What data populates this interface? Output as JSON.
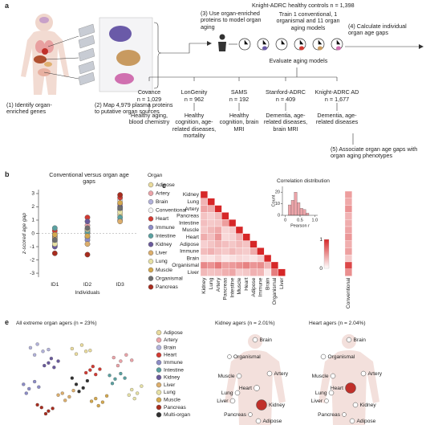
{
  "panel_a": {
    "label": "a",
    "steps": [
      "(1) Identify organ-enriched genes",
      "(2) Map 4,979 plasma proteins to putative organ sources",
      "(3) Use organ-enriched proteins to model organ aging",
      "(4) Calculate individual organ age gaps",
      "(5) Associate organ age gaps with organ aging phenotypes"
    ],
    "training_cohort": "Knight-ADRC healthy controls n = 1,398",
    "train": "Train 1 conventional, 1 organismal and 11 organ aging models",
    "evaluate": "Evaluate aging models",
    "cohorts": [
      {
        "name": "Covance",
        "n": "n = 1,029",
        "phenotypes": "Healthy aging, blood chemistry"
      },
      {
        "name": "LonGenity",
        "n": "n = 962",
        "phenotypes": "Healthy cognition, age-related diseases, mortality"
      },
      {
        "name": "SAMS",
        "n": "n = 192",
        "phenotypes": "Healthy cognition, brain MRI"
      },
      {
        "name": "Stanford-ADRC",
        "n": "n = 409",
        "phenotypes": "Dementia, age-related diseases, brain MRI"
      },
      {
        "name": "Knight-ADRC AD",
        "n": "n = 1,677",
        "phenotypes": "Dementia, age-related diseases"
      }
    ]
  },
  "panel_labels": [
    "b",
    "c",
    "e"
  ],
  "chart_data": [
    {
      "type": "scatter",
      "title": "Conventional versus organ age gaps",
      "y_label": "z-scored age gap",
      "x_label": "Individuals",
      "categories": [
        "ID1",
        "ID2",
        "ID3"
      ],
      "ylim": [
        -3.3,
        3.3
      ],
      "yticks": [
        -3,
        -2,
        -1,
        0,
        1,
        2,
        3
      ],
      "hline": 0,
      "legend_title": "Organ",
      "legend": "right",
      "series": [
        {
          "name": "Adipose",
          "color": "#eadb9c",
          "values": [
            -0.9,
            0.0,
            1.4
          ]
        },
        {
          "name": "Artery",
          "color": "#eba3a8",
          "values": [
            -0.3,
            0.6,
            2.2
          ]
        },
        {
          "name": "Brain",
          "color": "#b2b2da",
          "values": [
            -0.6,
            -0.3,
            1.0
          ]
        },
        {
          "name": "Conventional",
          "color": "#f4f4f4",
          "values": [
            0.0,
            0.2,
            2.5
          ]
        },
        {
          "name": "Heart",
          "color": "#d23a32",
          "values": [
            0.2,
            1.2,
            2.7
          ]
        },
        {
          "name": "Immune",
          "color": "#8c8cc6",
          "values": [
            -0.2,
            -0.5,
            1.8
          ]
        },
        {
          "name": "Intestine",
          "color": "#5aa0a0",
          "values": [
            0.4,
            0.1,
            1.2
          ]
        },
        {
          "name": "Kidney",
          "color": "#6a5a9c",
          "values": [
            -1.0,
            0.9,
            2.0
          ]
        },
        {
          "name": "Liver",
          "color": "#dcae6c",
          "values": [
            -0.4,
            -0.8,
            0.9
          ]
        },
        {
          "name": "Lung",
          "color": "#e6e0a4",
          "values": [
            -0.8,
            0.3,
            1.6
          ]
        },
        {
          "name": "Muscle",
          "color": "#d4a84e",
          "values": [
            -0.1,
            -0.2,
            2.3
          ]
        },
        {
          "name": "Organismal",
          "color": "#6e6e6e",
          "values": [
            -0.5,
            0.4,
            1.9
          ]
        },
        {
          "name": "Pancreas",
          "color": "#a82c1e",
          "values": [
            -1.5,
            -1.6,
            2.9
          ]
        }
      ]
    },
    {
      "type": "heatmap",
      "color": "#d62728",
      "colorlim": [
        0,
        1
      ],
      "labels": [
        "Kidney",
        "Lung",
        "Artery",
        "Pancreas",
        "Intestine",
        "Muscle",
        "Heart",
        "Adipose",
        "Immune",
        "Brain",
        "Organismal",
        "Liver"
      ],
      "values": [
        [
          1
        ],
        [
          0.35,
          1
        ],
        [
          0.42,
          0.38,
          1
        ],
        [
          0.28,
          0.22,
          0.31,
          1
        ],
        [
          0.3,
          0.25,
          0.27,
          0.45,
          1
        ],
        [
          0.26,
          0.33,
          0.4,
          0.2,
          0.24,
          1
        ],
        [
          0.38,
          0.29,
          0.48,
          0.18,
          0.21,
          0.35,
          1
        ],
        [
          0.22,
          0.27,
          0.34,
          0.3,
          0.26,
          0.32,
          0.28,
          1
        ],
        [
          0.31,
          0.36,
          0.29,
          0.25,
          0.33,
          0.27,
          0.24,
          0.39,
          1
        ],
        [
          0.15,
          0.12,
          0.2,
          0.1,
          0.14,
          0.18,
          0.16,
          0.13,
          0.22,
          1
        ],
        [
          0.55,
          0.5,
          0.62,
          0.44,
          0.47,
          0.52,
          0.58,
          0.49,
          0.53,
          0.35,
          1
        ],
        [
          0.33,
          0.28,
          0.3,
          0.37,
          0.41,
          0.23,
          0.26,
          0.36,
          0.34,
          0.11,
          0.6,
          1
        ]
      ],
      "extra_column": {
        "name": "Conventional",
        "values": [
          0.45,
          0.4,
          0.5,
          0.35,
          0.38,
          0.42,
          0.48,
          0.37,
          0.44,
          0.25,
          0.85,
          0.52
        ]
      }
    },
    {
      "type": "histogram",
      "title": "Correlation distribution",
      "x_label": "Pearson r",
      "y_label": "Count",
      "color": "#eba3a8",
      "bins": [
        0,
        0.1,
        0.2,
        0.3,
        0.4,
        0.5,
        0.6,
        0.7,
        0.8,
        0.9,
        1.0
      ],
      "values": [
        0,
        9,
        13,
        20,
        11,
        6,
        5,
        2,
        0,
        0
      ],
      "xlim": [
        -0.1,
        1.1
      ],
      "xticks": [
        0,
        0.5,
        {
          "value": 1.0,
          "label": "1.0"
        }
      ],
      "ylim": [
        0,
        25
      ],
      "yticks": [
        0,
        10,
        20
      ]
    },
    {
      "type": "scatter",
      "title": "All extreme organ agers (n = 23%)",
      "xlim": [
        0,
        10
      ],
      "ylim": [
        0,
        10
      ],
      "legend": "right",
      "series": [
        {
          "name": "Adipose",
          "color": "#eadb9c",
          "x": [
            4.5,
            5.2,
            5.8,
            4.8,
            5.5
          ],
          "y": [
            8.2,
            8.6,
            8.0,
            7.6,
            7.9
          ]
        },
        {
          "name": "Artery",
          "color": "#eba3a8",
          "x": [
            7.5,
            8.0,
            8.4,
            7.8,
            8.8
          ],
          "y": [
            7.2,
            6.8,
            7.5,
            6.3,
            6.9
          ]
        },
        {
          "name": "Brain",
          "color": "#b2b2da",
          "x": [
            1.5,
            2.0,
            2.4,
            1.8,
            2.8
          ],
          "y": [
            8.3,
            8.7,
            7.9,
            7.5,
            8.1
          ]
        },
        {
          "name": "Heart",
          "color": "#d23a32",
          "x": [
            5.8,
            6.2,
            6.5,
            6.0,
            5.5
          ],
          "y": [
            5.8,
            5.3,
            5.9,
            6.2,
            5.5
          ]
        },
        {
          "name": "Immune",
          "color": "#8c8cc6",
          "x": [
            1.0,
            1.4,
            1.8,
            1.2,
            2.1
          ],
          "y": [
            4.2,
            3.7,
            4.5,
            3.2,
            3.9
          ]
        },
        {
          "name": "Intestine",
          "color": "#5aa0a0",
          "x": [
            7.2,
            7.6,
            8.0,
            7.4,
            8.3
          ],
          "y": [
            5.2,
            4.8,
            5.4,
            4.3,
            4.9
          ]
        },
        {
          "name": "Kidney",
          "color": "#6a5a9c",
          "x": [
            2.8,
            3.2,
            3.5,
            3.0,
            2.5
          ],
          "y": [
            6.6,
            6.1,
            6.8,
            7.1,
            6.3
          ]
        },
        {
          "name": "Liver",
          "color": "#dcae6c",
          "x": [
            3.8,
            4.3,
            4.0,
            3.5,
            4.6
          ],
          "y": [
            3.2,
            2.8,
            2.4,
            3.0,
            3.5
          ]
        },
        {
          "name": "Lung",
          "color": "#e6e0a4",
          "x": [
            8.8,
            9.2,
            9.5,
            8.6,
            9.0
          ],
          "y": [
            3.6,
            3.2,
            4.0,
            3.0,
            2.6
          ]
        },
        {
          "name": "Muscle",
          "color": "#d4a84e",
          "x": [
            6.2,
            6.7,
            7.0,
            6.4,
            5.9
          ],
          "y": [
            2.6,
            2.2,
            2.9,
            1.8,
            2.3
          ]
        },
        {
          "name": "Pancreas",
          "color": "#a82c1e",
          "x": [
            2.3,
            2.8,
            2.0,
            3.1,
            2.6
          ],
          "y": [
            1.6,
            1.2,
            1.9,
            1.5,
            0.9
          ]
        },
        {
          "name": "Multi-organ",
          "color": "#303030",
          "x": [
            4.8,
            5.3,
            5.6,
            4.5,
            5.0
          ],
          "y": [
            4.2,
            3.8,
            4.6,
            4.9,
            3.4
          ]
        }
      ]
    }
  ],
  "organ_diagrams": [
    {
      "title": "Kidney agers (n = 2.01%)",
      "nodes": [
        {
          "label": "Brain",
          "value": 0.3
        },
        {
          "label": "Organismal",
          "value": 0.2
        },
        {
          "label": "Muscle",
          "value": 0.3
        },
        {
          "label": "Artery",
          "value": 0.3
        },
        {
          "label": "Heart",
          "value": 0.4
        },
        {
          "label": "Lung",
          "value": 0.3
        },
        {
          "label": "Liver",
          "value": 0.3
        },
        {
          "label": "Kidney",
          "value": 1.0
        },
        {
          "label": "Pancreas",
          "value": 0.2
        },
        {
          "label": "Adipose",
          "value": 0.3
        }
      ]
    },
    {
      "title": "Heart agers (n = 2.04%)",
      "nodes": [
        {
          "label": "Brain",
          "value": 0.3
        },
        {
          "label": "Organismal",
          "value": 0.3
        },
        {
          "label": "Muscle",
          "value": 0.3
        },
        {
          "label": "Artery",
          "value": 0.3
        },
        {
          "label": "Heart",
          "value": 1.0
        },
        {
          "label": "Lung",
          "value": 0.3
        },
        {
          "label": "Liver",
          "value": 0.2
        },
        {
          "label": "Kidney",
          "value": 0.3
        },
        {
          "label": "Pancreas",
          "value": 0.2
        },
        {
          "label": "Adipose",
          "value": 0.3
        }
      ]
    }
  ]
}
